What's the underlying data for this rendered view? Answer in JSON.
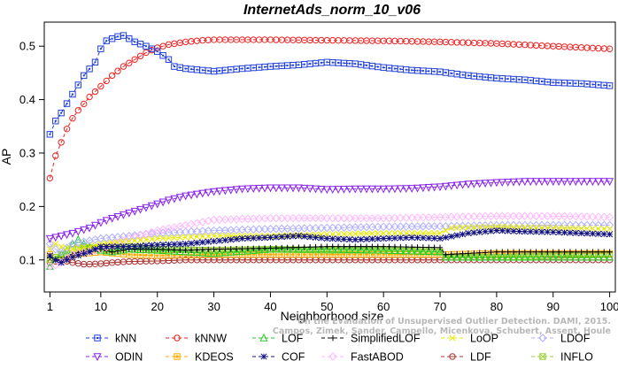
{
  "chart_data": {
    "type": "line",
    "title": "InternetAds_norm_10_v06",
    "xlabel": "Neighborhood size",
    "ylabel": "AP",
    "xlim": [
      0,
      101
    ],
    "ylim": [
      0.04,
      0.545
    ],
    "x_ticks": [
      1,
      10,
      20,
      30,
      40,
      50,
      60,
      70,
      80,
      90,
      100
    ],
    "y_ticks": [
      0.1,
      0.2,
      0.3,
      0.4,
      0.5
    ],
    "grid": false,
    "legend_position": "bottom",
    "credit_lines": [
      "Campos, Zimek, Sander, Campello, Micenkova, Schubert, Assent, Houle",
      "On the Evaluation of Unsupervised Outlier Detection. DAMI, 2015."
    ],
    "series": [
      {
        "name": "kNN",
        "color": "#1f3fdc",
        "marker": "square",
        "dash": "4,3",
        "points": [
          [
            1,
            0.335
          ],
          [
            2,
            0.36
          ],
          [
            3,
            0.375
          ],
          [
            5,
            0.41
          ],
          [
            7,
            0.445
          ],
          [
            9,
            0.47
          ],
          [
            10,
            0.495
          ],
          [
            11,
            0.51
          ],
          [
            13,
            0.518
          ],
          [
            14,
            0.52
          ],
          [
            16,
            0.508
          ],
          [
            18,
            0.5
          ],
          [
            20,
            0.49
          ],
          [
            22,
            0.475
          ],
          [
            23,
            0.462
          ],
          [
            25,
            0.458
          ],
          [
            30,
            0.453
          ],
          [
            35,
            0.458
          ],
          [
            40,
            0.462
          ],
          [
            45,
            0.465
          ],
          [
            50,
            0.47
          ],
          [
            55,
            0.467
          ],
          [
            60,
            0.46
          ],
          [
            65,
            0.455
          ],
          [
            70,
            0.452
          ],
          [
            75,
            0.445
          ],
          [
            80,
            0.44
          ],
          [
            85,
            0.437
          ],
          [
            90,
            0.432
          ],
          [
            95,
            0.43
          ],
          [
            100,
            0.426
          ]
        ]
      },
      {
        "name": "kNNW",
        "color": "#ee2222",
        "marker": "circle",
        "dash": "4,3",
        "points": [
          [
            1,
            0.253
          ],
          [
            2,
            0.295
          ],
          [
            3,
            0.32
          ],
          [
            4,
            0.345
          ],
          [
            5,
            0.365
          ],
          [
            6,
            0.38
          ],
          [
            7,
            0.392
          ],
          [
            8,
            0.405
          ],
          [
            10,
            0.425
          ],
          [
            12,
            0.445
          ],
          [
            14,
            0.462
          ],
          [
            16,
            0.475
          ],
          [
            18,
            0.488
          ],
          [
            20,
            0.497
          ],
          [
            22,
            0.503
          ],
          [
            25,
            0.508
          ],
          [
            28,
            0.511
          ],
          [
            30,
            0.512
          ],
          [
            40,
            0.512
          ],
          [
            50,
            0.511
          ],
          [
            60,
            0.51
          ],
          [
            70,
            0.508
          ],
          [
            80,
            0.505
          ],
          [
            90,
            0.5
          ],
          [
            100,
            0.495
          ]
        ]
      },
      {
        "name": "LOF",
        "color": "#22cc22",
        "marker": "triangle-up",
        "dash": "4,3",
        "points": [
          [
            1,
            0.088
          ],
          [
            2,
            0.1
          ],
          [
            3,
            0.11
          ],
          [
            4,
            0.118
          ],
          [
            5,
            0.13
          ],
          [
            6,
            0.138
          ],
          [
            7,
            0.13
          ],
          [
            8,
            0.125
          ],
          [
            10,
            0.118
          ],
          [
            12,
            0.115
          ],
          [
            15,
            0.12
          ],
          [
            20,
            0.118
          ],
          [
            25,
            0.115
          ],
          [
            30,
            0.112
          ],
          [
            40,
            0.12
          ],
          [
            50,
            0.12
          ],
          [
            60,
            0.118
          ],
          [
            70,
            0.115
          ],
          [
            71,
            0.105
          ],
          [
            80,
            0.105
          ],
          [
            90,
            0.105
          ],
          [
            100,
            0.105
          ]
        ]
      },
      {
        "name": "SimplifiedLOF",
        "color": "#000000",
        "marker": "plus",
        "dash": "4,3",
        "points": [
          [
            1,
            0.105
          ],
          [
            2,
            0.1
          ],
          [
            3,
            0.1
          ],
          [
            5,
            0.11
          ],
          [
            7,
            0.118
          ],
          [
            8,
            0.122
          ],
          [
            10,
            0.12
          ],
          [
            12,
            0.115
          ],
          [
            15,
            0.12
          ],
          [
            20,
            0.12
          ],
          [
            25,
            0.118
          ],
          [
            30,
            0.12
          ],
          [
            40,
            0.122
          ],
          [
            50,
            0.125
          ],
          [
            60,
            0.125
          ],
          [
            70,
            0.123
          ],
          [
            71,
            0.11
          ],
          [
            80,
            0.115
          ],
          [
            90,
            0.115
          ],
          [
            100,
            0.115
          ]
        ]
      },
      {
        "name": "LoOP",
        "color": "#e8e800",
        "marker": "x",
        "dash": "4,3",
        "points": [
          [
            1,
            0.12
          ],
          [
            2,
            0.13
          ],
          [
            3,
            0.125
          ],
          [
            5,
            0.12
          ],
          [
            8,
            0.125
          ],
          [
            10,
            0.13
          ],
          [
            15,
            0.135
          ],
          [
            20,
            0.14
          ],
          [
            30,
            0.145
          ],
          [
            40,
            0.145
          ],
          [
            50,
            0.148
          ],
          [
            60,
            0.15
          ],
          [
            70,
            0.15
          ],
          [
            72,
            0.16
          ],
          [
            80,
            0.162
          ],
          [
            90,
            0.16
          ],
          [
            100,
            0.158
          ]
        ]
      },
      {
        "name": "LDOF",
        "color": "#b0b0ff",
        "marker": "diamond",
        "dash": "4,3",
        "points": [
          [
            1,
            0.13
          ],
          [
            2,
            0.12
          ],
          [
            3,
            0.115
          ],
          [
            5,
            0.13
          ],
          [
            10,
            0.14
          ],
          [
            15,
            0.145
          ],
          [
            20,
            0.15
          ],
          [
            30,
            0.155
          ],
          [
            40,
            0.158
          ],
          [
            50,
            0.16
          ],
          [
            60,
            0.162
          ],
          [
            70,
            0.163
          ],
          [
            80,
            0.165
          ],
          [
            90,
            0.165
          ],
          [
            100,
            0.165
          ]
        ]
      },
      {
        "name": "ODIN",
        "color": "#8822ee",
        "marker": "triangle-down",
        "dash": "4,3",
        "points": [
          [
            1,
            0.14
          ],
          [
            3,
            0.145
          ],
          [
            5,
            0.15
          ],
          [
            8,
            0.16
          ],
          [
            10,
            0.17
          ],
          [
            12,
            0.178
          ],
          [
            15,
            0.188
          ],
          [
            18,
            0.198
          ],
          [
            20,
            0.205
          ],
          [
            22,
            0.212
          ],
          [
            25,
            0.22
          ],
          [
            28,
            0.225
          ],
          [
            30,
            0.228
          ],
          [
            35,
            0.233
          ],
          [
            40,
            0.235
          ],
          [
            45,
            0.235
          ],
          [
            50,
            0.232
          ],
          [
            55,
            0.233
          ],
          [
            60,
            0.233
          ],
          [
            65,
            0.234
          ],
          [
            70,
            0.237
          ],
          [
            75,
            0.242
          ],
          [
            80,
            0.245
          ],
          [
            85,
            0.247
          ],
          [
            90,
            0.247
          ],
          [
            95,
            0.247
          ],
          [
            100,
            0.247
          ]
        ]
      },
      {
        "name": "KDEOS",
        "color": "#ffaa00",
        "marker": "square-filled",
        "dash": "4,3",
        "points": [
          [
            1,
            0.11
          ],
          [
            2,
            0.105
          ],
          [
            3,
            0.105
          ],
          [
            5,
            0.11
          ],
          [
            10,
            0.115
          ],
          [
            15,
            0.11
          ],
          [
            20,
            0.108
          ],
          [
            30,
            0.11
          ],
          [
            40,
            0.11
          ],
          [
            50,
            0.11
          ],
          [
            60,
            0.11
          ],
          [
            70,
            0.11
          ],
          [
            80,
            0.112
          ],
          [
            90,
            0.112
          ],
          [
            100,
            0.112
          ]
        ]
      },
      {
        "name": "COF",
        "color": "#101080",
        "marker": "star",
        "dash": "4,3",
        "points": [
          [
            1,
            0.108
          ],
          [
            2,
            0.1
          ],
          [
            3,
            0.095
          ],
          [
            5,
            0.105
          ],
          [
            8,
            0.115
          ],
          [
            10,
            0.125
          ],
          [
            15,
            0.125
          ],
          [
            20,
            0.128
          ],
          [
            25,
            0.13
          ],
          [
            30,
            0.135
          ],
          [
            35,
            0.14
          ],
          [
            40,
            0.142
          ],
          [
            45,
            0.145
          ],
          [
            50,
            0.14
          ],
          [
            55,
            0.138
          ],
          [
            60,
            0.14
          ],
          [
            65,
            0.142
          ],
          [
            70,
            0.14
          ],
          [
            75,
            0.15
          ],
          [
            80,
            0.155
          ],
          [
            85,
            0.153
          ],
          [
            90,
            0.152
          ],
          [
            95,
            0.15
          ],
          [
            100,
            0.148
          ]
        ]
      },
      {
        "name": "FastABOD",
        "color": "#ffb8ff",
        "marker": "diamond",
        "dash": "4,3",
        "points": [
          [
            1,
            0.088
          ],
          [
            2,
            0.09
          ],
          [
            3,
            0.095
          ],
          [
            5,
            0.11
          ],
          [
            10,
            0.12
          ],
          [
            15,
            0.14
          ],
          [
            20,
            0.155
          ],
          [
            25,
            0.165
          ],
          [
            30,
            0.175
          ],
          [
            40,
            0.178
          ],
          [
            50,
            0.178
          ],
          [
            60,
            0.178
          ],
          [
            70,
            0.18
          ],
          [
            80,
            0.182
          ],
          [
            90,
            0.182
          ],
          [
            100,
            0.18
          ]
        ]
      },
      {
        "name": "LDF",
        "color": "#aa3333",
        "marker": "circle-dot",
        "dash": "4,3",
        "points": [
          [
            1,
            0.095
          ],
          [
            3,
            0.1
          ],
          [
            5,
            0.095
          ],
          [
            7,
            0.092
          ],
          [
            8,
            0.092
          ],
          [
            10,
            0.093
          ],
          [
            12,
            0.095
          ],
          [
            15,
            0.097
          ],
          [
            20,
            0.098
          ],
          [
            25,
            0.1
          ],
          [
            27,
            0.1
          ],
          [
            28,
            0.1
          ],
          [
            30,
            0.1
          ],
          [
            40,
            0.1
          ],
          [
            50,
            0.1
          ],
          [
            60,
            0.1
          ],
          [
            70,
            0.1
          ],
          [
            80,
            0.1
          ],
          [
            90,
            0.1
          ],
          [
            100,
            0.1
          ]
        ]
      },
      {
        "name": "INFLO",
        "color": "#99cc33",
        "marker": "hourglass",
        "dash": "4,3",
        "points": [
          [
            1,
            0.1
          ],
          [
            2,
            0.105
          ],
          [
            3,
            0.11
          ],
          [
            5,
            0.12
          ],
          [
            7,
            0.125
          ],
          [
            10,
            0.12
          ],
          [
            15,
            0.125
          ],
          [
            20,
            0.12
          ],
          [
            30,
            0.118
          ],
          [
            40,
            0.12
          ],
          [
            50,
            0.118
          ],
          [
            60,
            0.118
          ],
          [
            70,
            0.115
          ],
          [
            71,
            0.105
          ],
          [
            80,
            0.105
          ],
          [
            90,
            0.108
          ],
          [
            100,
            0.11
          ]
        ]
      }
    ]
  }
}
